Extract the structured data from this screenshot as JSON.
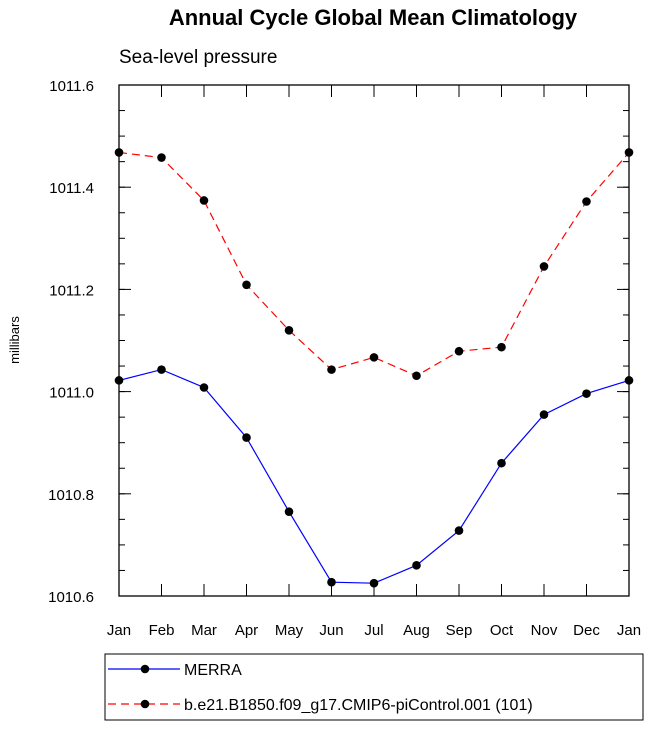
{
  "chart_data": {
    "type": "line",
    "title": "Annual Cycle Global Mean Climatology",
    "subtitle": "Sea-level pressure",
    "xlabel": "",
    "ylabel": "millibars",
    "categories": [
      "Jan",
      "Feb",
      "Mar",
      "Apr",
      "May",
      "Jun",
      "Jul",
      "Aug",
      "Sep",
      "Oct",
      "Nov",
      "Dec",
      "Jan"
    ],
    "ylim": [
      1010.6,
      1011.6
    ],
    "yticks": [
      1010.6,
      1010.8,
      1011.0,
      1011.2,
      1011.4,
      1011.6
    ],
    "ytick_labels": [
      "1010.6",
      "1010.8",
      "1011.0",
      "1011.2",
      "1011.4",
      "1011.6"
    ],
    "series": [
      {
        "name": "MERRA",
        "color": "#0000ff",
        "dash": "solid",
        "values": [
          1011.022,
          1011.043,
          1011.008,
          1010.91,
          1010.765,
          1010.627,
          1010.625,
          1010.66,
          1010.728,
          1010.86,
          1010.955,
          1010.996,
          1011.022
        ]
      },
      {
        "name": "b.e21.B1850.f09_g17.CMIP6-piControl.001 (101)",
        "color": "#ff0000",
        "dash": "dashed",
        "values": [
          1011.468,
          1011.458,
          1011.374,
          1011.209,
          1011.12,
          1011.043,
          1011.067,
          1011.031,
          1011.079,
          1011.087,
          1011.245,
          1011.372,
          1011.468
        ]
      }
    ],
    "marker_color": "#000000",
    "legend_position": "bottom"
  }
}
